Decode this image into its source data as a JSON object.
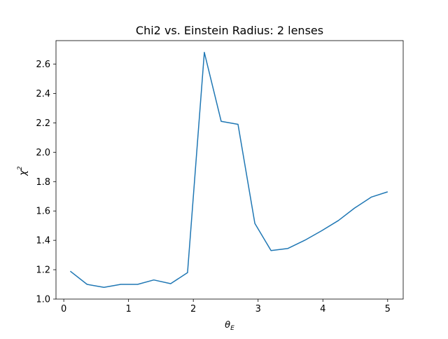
{
  "chart_data": {
    "type": "line",
    "title": "Chi2 vs. Einstein Radius: 2 lenses",
    "xlabel": {
      "symbol": "θ",
      "subscript": "E"
    },
    "ylabel": {
      "symbol": "χ",
      "superscript": "2"
    },
    "xlim": [
      -0.12,
      5.24
    ],
    "ylim": [
      1.0,
      2.76
    ],
    "xticks": [
      0,
      1,
      2,
      3,
      4,
      5
    ],
    "xtick_labels": [
      "0",
      "1",
      "2",
      "3",
      "4",
      "5"
    ],
    "yticks": [
      1.0,
      1.2,
      1.4,
      1.6,
      1.8,
      2.0,
      2.2,
      2.4,
      2.6
    ],
    "ytick_labels": [
      "1.0",
      "1.2",
      "1.4",
      "1.6",
      "1.8",
      "2.0",
      "2.2",
      "2.4",
      "2.6"
    ],
    "grid": false,
    "series": [
      {
        "color": "#1f77b4",
        "x": [
          0.1,
          0.36,
          0.62,
          0.88,
          1.14,
          1.39,
          1.65,
          1.91,
          2.17,
          2.43,
          2.69,
          2.95,
          3.2,
          3.46,
          3.72,
          3.98,
          4.24,
          4.49,
          4.75,
          5.0
        ],
        "y": [
          1.19,
          1.1,
          1.08,
          1.1,
          1.1,
          1.13,
          1.105,
          1.18,
          2.68,
          2.21,
          2.19,
          1.515,
          1.33,
          1.345,
          1.4,
          1.465,
          1.535,
          1.62,
          1.695,
          1.73
        ]
      }
    ]
  }
}
